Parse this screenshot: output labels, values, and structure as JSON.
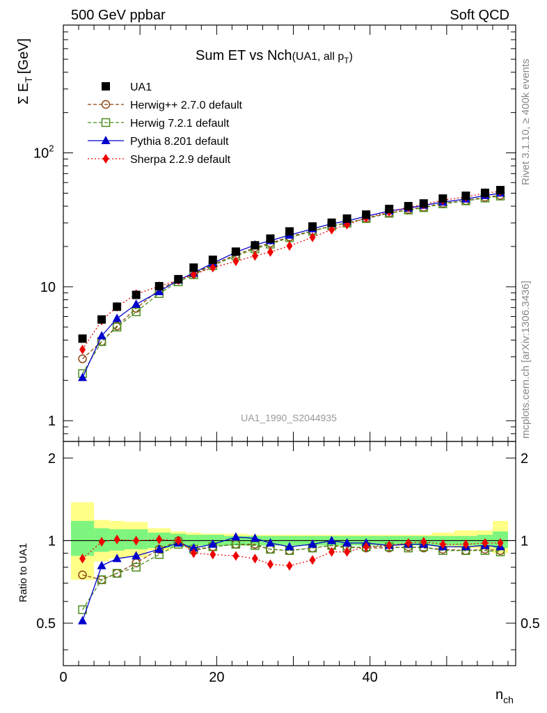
{
  "header": {
    "left": "500 GeV ppbar",
    "right": "Soft QCD"
  },
  "side_labels": {
    "rivet": "Rivet 3.1.10, ≥ 400k events",
    "mcplots": "mcplots.cern.ch [arXiv:1306.3436]"
  },
  "watermark": "UA1_1990_S2044935",
  "chart_data": [
    {
      "type": "line",
      "title_main": "Sum ET vs Nch",
      "title_sub": "(UA1, all p",
      "title_sub_index": "T",
      "ylabel": "Σ E",
      "ylabel_index": "T",
      "ylabel_unit": "[GeV]",
      "yscale": "log",
      "xlim": [
        0,
        59
      ],
      "ylim": [
        0.7,
        900
      ],
      "yticks": [
        {
          "value": 1,
          "label": "1"
        },
        {
          "value": 10,
          "label": "10"
        },
        {
          "value": 100,
          "label": "10",
          "exp": "2"
        }
      ],
      "legend_position": "top-left",
      "x": [
        2.5,
        5,
        7,
        9.5,
        12.5,
        15,
        17,
        19.5,
        22.5,
        25,
        27,
        29.5,
        32.5,
        35,
        37,
        39.5,
        42.5,
        45,
        47,
        49.5,
        52.5,
        55,
        57
      ],
      "series": [
        {
          "name": "UA1",
          "color": "#000000",
          "marker": "square-filled",
          "line": "none",
          "values": [
            4.1,
            5.7,
            7.1,
            8.7,
            10.1,
            11.4,
            13.9,
            15.9,
            18.3,
            20.4,
            22.9,
            25.9,
            28.2,
            30.1,
            32.3,
            34.6,
            38.1,
            40.0,
            41.9,
            45.6,
            47.8,
            50.3,
            52.7
          ]
        },
        {
          "name": "Herwig++ 2.7.0 default",
          "color": "#8b4513",
          "marker": "circle-open",
          "line": "dashed",
          "values": [
            2.9,
            3.9,
            5.1,
            6.9,
            9.5,
            11.3,
            12.5,
            14.7,
            17.3,
            19.6,
            21.2,
            23.6,
            26.2,
            28.5,
            30.0,
            32.4,
            35.5,
            37.8,
            39.3,
            42.0,
            44.0,
            46.6,
            48.2
          ]
        },
        {
          "name": "Herwig 7.2.1 default",
          "color": "#4a8c1c",
          "marker": "square-open",
          "line": "dashed",
          "values": [
            2.25,
            3.9,
            5.0,
            6.5,
            8.9,
            10.9,
            12.3,
            14.4,
            17.0,
            19.2,
            20.8,
            23.3,
            26.0,
            28.4,
            29.9,
            32.3,
            35.4,
            37.4,
            39.0,
            41.6,
            43.8,
            46.0,
            47.6
          ]
        },
        {
          "name": "Pythia 8.201 default",
          "color": "#0000cc",
          "marker": "triangle-filled",
          "line": "solid",
          "values": [
            2.1,
            4.3,
            5.8,
            7.4,
            9.2,
            11.2,
            12.7,
            15.0,
            18.1,
            20.5,
            22.1,
            24.3,
            27.1,
            29.6,
            31.0,
            33.6,
            36.8,
            38.6,
            40.6,
            42.9,
            45.2,
            48.0,
            50.0
          ]
        },
        {
          "name": "Sherpa 2.2.9 default",
          "color": "#ee0000",
          "marker": "diamond-filled",
          "line": "dotted",
          "values": [
            3.4,
            5.6,
            7.1,
            8.8,
            10.1,
            11.2,
            12.4,
            13.9,
            15.5,
            17.0,
            18.2,
            20.2,
            23.4,
            26.7,
            29.1,
            32.7,
            36.2,
            39.2,
            41.2,
            44.3,
            46.9,
            50.0,
            51.7
          ]
        }
      ]
    },
    {
      "type": "line",
      "ylabel": "Ratio to UA1",
      "xlabel": "n",
      "xlabel_index": "ch",
      "xlim": [
        0,
        59
      ],
      "ylim": [
        0.35,
        2.3
      ],
      "yscale": "log",
      "xticks": [
        {
          "value": 0,
          "label": "0"
        },
        {
          "value": 20,
          "label": "20"
        },
        {
          "value": 40,
          "label": "40"
        }
      ],
      "yticks": [
        {
          "value": 0.5,
          "label": "0.5"
        },
        {
          "value": 1,
          "label": "1"
        },
        {
          "value": 2,
          "label": "2"
        }
      ],
      "bands": {
        "edges": [
          1,
          4,
          6,
          8,
          11,
          14,
          16,
          18,
          21,
          24,
          26,
          28,
          31,
          34,
          36,
          38,
          41,
          44,
          46,
          48,
          51,
          54,
          56,
          58
        ],
        "stat_color": "#7ef57e",
        "total_color": "#ffff88",
        "stat": [
          [
            0.88,
            1.18
          ],
          [
            0.91,
            1.11
          ],
          [
            0.92,
            1.1
          ],
          [
            0.93,
            1.1
          ],
          [
            0.94,
            1.07
          ],
          [
            0.95,
            1.06
          ],
          [
            0.96,
            1.05
          ],
          [
            0.96,
            1.05
          ],
          [
            0.96,
            1.04
          ],
          [
            0.96,
            1.04
          ],
          [
            0.96,
            1.04
          ],
          [
            0.96,
            1.04
          ],
          [
            0.96,
            1.04
          ],
          [
            0.96,
            1.04
          ],
          [
            0.96,
            1.04
          ],
          [
            0.96,
            1.04
          ],
          [
            0.96,
            1.04
          ],
          [
            0.96,
            1.04
          ],
          [
            0.96,
            1.04
          ],
          [
            0.96,
            1.04
          ],
          [
            0.96,
            1.04
          ],
          [
            0.96,
            1.05
          ],
          [
            0.94,
            1.08
          ]
        ],
        "total": [
          [
            0.72,
            1.38
          ],
          [
            0.84,
            1.19
          ],
          [
            0.86,
            1.18
          ],
          [
            0.87,
            1.17
          ],
          [
            0.92,
            1.11
          ],
          [
            0.95,
            1.08
          ],
          [
            0.95,
            1.07
          ],
          [
            0.96,
            1.06
          ],
          [
            0.96,
            1.06
          ],
          [
            0.96,
            1.05
          ],
          [
            0.96,
            1.05
          ],
          [
            0.96,
            1.05
          ],
          [
            0.96,
            1.05
          ],
          [
            0.96,
            1.05
          ],
          [
            0.96,
            1.05
          ],
          [
            0.96,
            1.05
          ],
          [
            0.96,
            1.05
          ],
          [
            0.96,
            1.05
          ],
          [
            0.96,
            1.05
          ],
          [
            0.95,
            1.07
          ],
          [
            0.94,
            1.09
          ],
          [
            0.93,
            1.09
          ],
          [
            0.9,
            1.18
          ]
        ]
      },
      "x": [
        2.5,
        5,
        7,
        9.5,
        12.5,
        15,
        17,
        19.5,
        22.5,
        25,
        27,
        29.5,
        32.5,
        35,
        37,
        39.5,
        42.5,
        45,
        47,
        49.5,
        52.5,
        55,
        57
      ],
      "series": [
        {
          "name": "Herwig++ 2.7.0 default",
          "values": [
            0.75,
            0.72,
            0.76,
            0.83,
            0.93,
            1.0,
            0.92,
            0.95,
            0.97,
            0.97,
            0.93,
            0.92,
            0.94,
            0.96,
            0.95,
            0.94,
            0.94,
            0.95,
            0.94,
            0.93,
            0.92,
            0.93,
            0.92
          ]
        },
        {
          "name": "Herwig 7.2.1 default",
          "values": [
            0.56,
            0.72,
            0.76,
            0.8,
            0.89,
            0.97,
            0.93,
            0.95,
            0.97,
            0.96,
            0.93,
            0.92,
            0.94,
            0.96,
            0.94,
            0.95,
            0.95,
            0.94,
            0.95,
            0.92,
            0.92,
            0.92,
            0.91
          ]
        },
        {
          "name": "Pythia 8.201 default",
          "values": [
            0.51,
            0.81,
            0.86,
            0.88,
            0.93,
            0.98,
            0.94,
            0.97,
            1.03,
            1.02,
            0.98,
            0.95,
            0.97,
            1.0,
            0.98,
            0.98,
            0.96,
            0.97,
            0.97,
            0.95,
            0.95,
            0.96,
            0.95
          ]
        },
        {
          "name": "Sherpa 2.2.9 default",
          "values": [
            0.86,
            0.99,
            1.01,
            1.0,
            1.01,
            1.0,
            0.9,
            0.89,
            0.88,
            0.86,
            0.82,
            0.81,
            0.85,
            0.91,
            0.91,
            0.95,
            0.96,
            0.98,
            0.99,
            0.97,
            0.97,
            0.98,
            0.98
          ]
        }
      ]
    }
  ]
}
